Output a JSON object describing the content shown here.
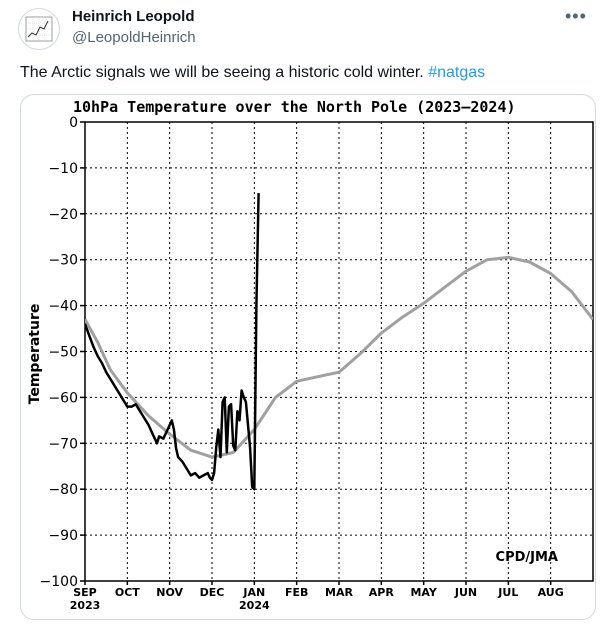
{
  "post": {
    "author_name": "Heinrich Leopold",
    "author_handle": "@LeopoldHeinrich",
    "more_icon": "more-icon",
    "text": "The Arctic signals we will be seeing a historic cold winter. ",
    "hashtag": "#natgas"
  },
  "chart_data": {
    "type": "line",
    "title": "10hPa Temperature over the North Pole (2023–2024)",
    "ylabel": "Temperature",
    "xlabel": "",
    "ylim": [
      -100,
      0
    ],
    "yticks": [
      0,
      -10,
      -20,
      -30,
      -40,
      -50,
      -60,
      -70,
      -80,
      -90,
      -100
    ],
    "ytick_labels": [
      "0",
      "−10",
      "−20",
      "−30",
      "−40",
      "−50",
      "−60",
      "−70",
      "−80",
      "−90",
      "−100"
    ],
    "x_unit": "months since SEP 1 2023",
    "xlim": [
      0,
      12
    ],
    "xticks": [
      {
        "label": "SEP",
        "sub": "2023",
        "x": 0
      },
      {
        "label": "OCT",
        "sub": "",
        "x": 1
      },
      {
        "label": "NOV",
        "sub": "",
        "x": 2
      },
      {
        "label": "DEC",
        "sub": "",
        "x": 3
      },
      {
        "label": "JAN",
        "sub": "2024",
        "x": 4
      },
      {
        "label": "FEB",
        "sub": "",
        "x": 5
      },
      {
        "label": "MAR",
        "sub": "",
        "x": 6
      },
      {
        "label": "APR",
        "sub": "",
        "x": 7
      },
      {
        "label": "MAY",
        "sub": "",
        "x": 8
      },
      {
        "label": "JUN",
        "sub": "",
        "x": 9
      },
      {
        "label": "JUL",
        "sub": "",
        "x": 10
      },
      {
        "label": "AUG",
        "sub": "",
        "x": 11
      }
    ],
    "grid": true,
    "annotation": "CPD/JMA",
    "series": [
      {
        "name": "",
        "color": "#a0a0a0",
        "x": [
          0,
          0.3,
          0.6,
          1.0,
          1.5,
          2.0,
          2.5,
          3.0,
          3.5,
          4.0,
          4.5,
          5.0,
          5.5,
          6.0,
          6.5,
          7.0,
          7.5,
          8.0,
          8.5,
          9.0,
          9.5,
          10.0,
          10.5,
          11.0,
          11.5,
          12.0
        ],
        "y": [
          -43,
          -48,
          -54,
          -59,
          -64,
          -68,
          -71.5,
          -73,
          -72,
          -67,
          -60,
          -56.5,
          -55.5,
          -54.5,
          -50.5,
          -46,
          -42.5,
          -39.5,
          -36,
          -32.5,
          -30,
          -29.5,
          -30.5,
          -33,
          -37,
          -43
        ]
      },
      {
        "name": "",
        "color": "#000000",
        "x": [
          0,
          0.1,
          0.2,
          0.3,
          0.4,
          0.5,
          0.6,
          0.7,
          0.8,
          0.9,
          1.0,
          1.1,
          1.2,
          1.3,
          1.4,
          1.5,
          1.6,
          1.7,
          1.75,
          1.85,
          1.95,
          2.05,
          2.1,
          2.15,
          2.2,
          2.3,
          2.4,
          2.5,
          2.6,
          2.7,
          2.8,
          2.9,
          2.95,
          3.0,
          3.05,
          3.1,
          3.15,
          3.2,
          3.25,
          3.3,
          3.35,
          3.4,
          3.45,
          3.5,
          3.55,
          3.6,
          3.65,
          3.7,
          3.75,
          3.8,
          3.85,
          3.9,
          3.95,
          4.0,
          4.05,
          4.1
        ],
        "y": [
          -44,
          -46.5,
          -49,
          -51,
          -52.5,
          -54.5,
          -56,
          -57.5,
          -59,
          -60.5,
          -62,
          -62,
          -61.5,
          -63,
          -64.5,
          -66,
          -68,
          -70,
          -68.5,
          -69,
          -67,
          -65,
          -67,
          -71,
          -73,
          -74,
          -75.5,
          -77,
          -76.5,
          -77.5,
          -77,
          -76.5,
          -77.5,
          -78,
          -76.5,
          -71,
          -67,
          -73,
          -61,
          -60,
          -72,
          -62,
          -61.5,
          -70.5,
          -71.5,
          -63,
          -65,
          -58.5,
          -60,
          -61,
          -66,
          -71,
          -79.5,
          -80,
          -40,
          -15.5
        ]
      }
    ]
  }
}
